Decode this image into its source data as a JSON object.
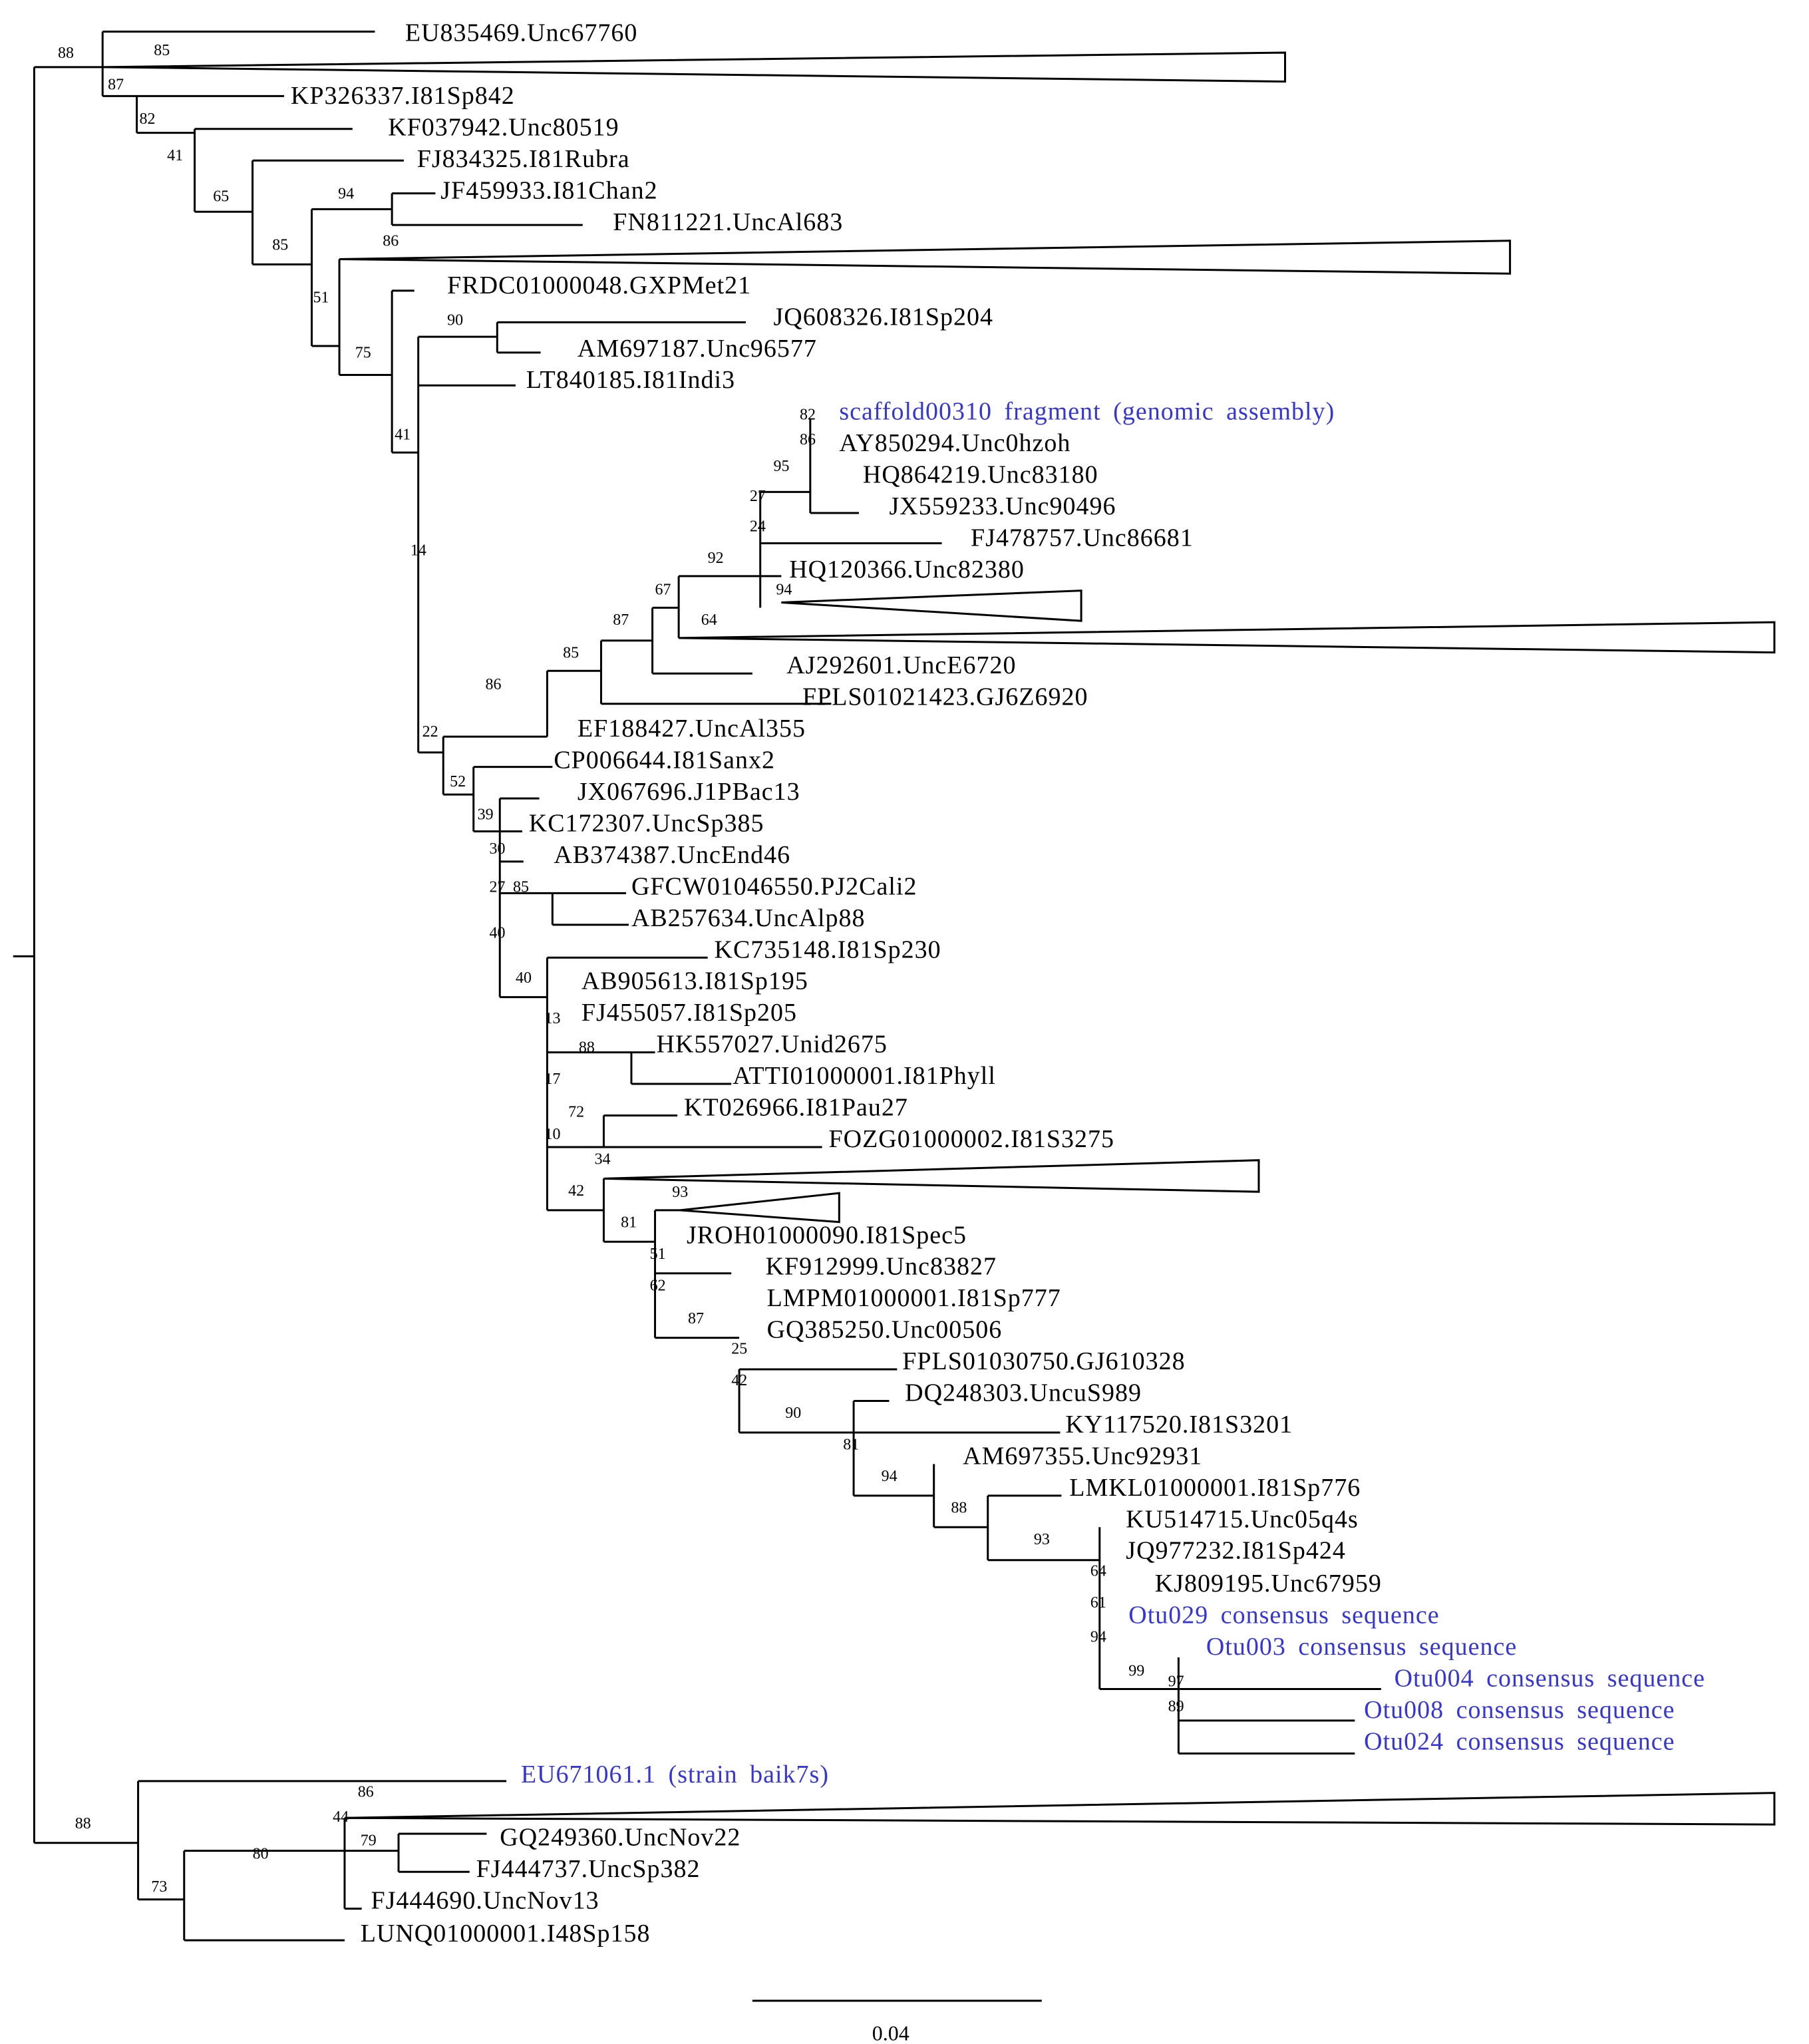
{
  "tree": {
    "scale_label": "0.04",
    "leaves": [
      "EU835469.Unc67760",
      "KP326337.I81Sp842",
      "KF037942.Unc80519",
      "FJ834325.I81Rubra",
      "JF459933.I81Chan2",
      "FN811221.UncAl683",
      "FRDC01000048.GXPMet21",
      "JQ608326.I81Sp204",
      "AM697187.Unc96577",
      "LT840185.I81Indi3",
      "scaffold00310 fragment (genomic assembly)",
      "AY850294.Unc0hzoh",
      "HQ864219.Unc83180",
      "JX559233.Unc90496",
      "FJ478757.Unc86681",
      "HQ120366.Unc82380",
      "AJ292601.UncE6720",
      "FPLS01021423.GJ6Z6920",
      "EF188427.UncAl355",
      "CP006644.I81Sanx2",
      "JX067696.J1PBac13",
      "KC172307.UncSp385",
      "AB374387.UncEnd46",
      "GFCW01046550.PJ2Cali2",
      "AB257634.UncAlp88",
      "KC735148.I81Sp230",
      "AB905613.I81Sp195",
      "FJ455057.I81Sp205",
      "HK557027.Unid2675",
      "ATTI01000001.I81Phyll",
      "KT026966.I81Pau27",
      "FOZG01000002.I81S3275",
      "JROH01000090.I81Spec5",
      "KF912999.Unc83827",
      "LMPM01000001.I81Sp777",
      "GQ385250.Unc00506",
      "FPLS01030750.GJ610328",
      "DQ248303.UncuS989",
      "KY117520.I81S3201",
      "AM697355.Unc92931",
      "LMKL01000001.I81Sp776",
      "KU514715.Unc05q4s",
      "JQ977232.I81Sp424",
      "KJ809195.Unc67959",
      "Otu029 consensus sequence",
      "Otu003 consensus sequence",
      "Otu004 consensus sequence",
      "Otu008 consensus sequence",
      "Otu024 consensus sequence",
      "EU671061.1 (strain baik7s)",
      "GQ249360.UncNov22",
      "FJ444737.UncSp382",
      "FJ444690.UncNov13",
      "LUNQ01000001.I48Sp158"
    ],
    "support": [
      "88",
      "85",
      "87",
      "82",
      "41",
      "65",
      "94",
      "86",
      "85",
      "51",
      "75",
      "90",
      "41",
      "14",
      "82",
      "86",
      "95",
      "27",
      "24",
      "92",
      "94",
      "67",
      "64",
      "87",
      "85",
      "86",
      "22",
      "52",
      "39",
      "30",
      "27",
      "85",
      "40",
      "40",
      "13",
      "88",
      "17",
      "72",
      "10",
      "34",
      "42",
      "93",
      "81",
      "51",
      "62",
      "87",
      "25",
      "42",
      "90",
      "81",
      "94",
      "88",
      "93",
      "64",
      "61",
      "94",
      "99",
      "97",
      "89",
      "86",
      "44",
      "79",
      "80",
      "88",
      "73"
    ]
  },
  "colors": {
    "branch": "#000000",
    "highlight": "#3535d8"
  }
}
